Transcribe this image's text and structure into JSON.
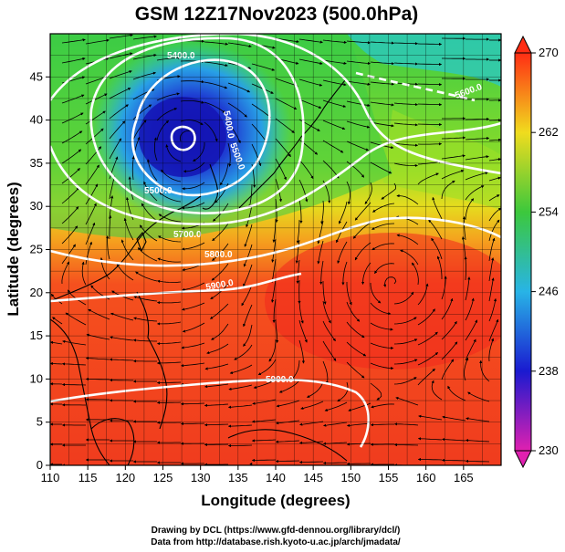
{
  "title": "GSM 12Z17Nov2023 (500.0hPa)",
  "x_axis": {
    "label": "Longitude (degrees)",
    "range": [
      110,
      170
    ],
    "ticks": [
      "110",
      "115",
      "120",
      "125",
      "130",
      "135",
      "140",
      "145",
      "150",
      "155",
      "160",
      "165"
    ]
  },
  "y_axis": {
    "label": "Latitude (degrees)",
    "range": [
      0,
      50
    ],
    "ticks": [
      "0",
      "5",
      "10",
      "15",
      "20",
      "25",
      "30",
      "35",
      "40",
      "45"
    ]
  },
  "colorbar": {
    "range": [
      230,
      270
    ],
    "tick_labels": [
      "230",
      "238",
      "246",
      "254",
      "262",
      "270"
    ]
  },
  "contour_labels": [
    "5400.0",
    "5400.0",
    "5500.0",
    "5500.0",
    "5600.0",
    "5700.0",
    "5800.0",
    "5900.0",
    "5900.0"
  ],
  "credits": {
    "line1": "Drawing by DCL (https://www.gfd-dennou.org/library/dcl/)",
    "line2": "Data from http://database.rish.kyoto-u.ac.jp/arch/jmadata/"
  },
  "colors": {
    "c230": "#e020b0",
    "c238": "#1a1ad0",
    "c246": "#28b4e6",
    "c254": "#3cc83c",
    "c262": "#f0dc1e",
    "c270": "#ff2d14"
  }
}
